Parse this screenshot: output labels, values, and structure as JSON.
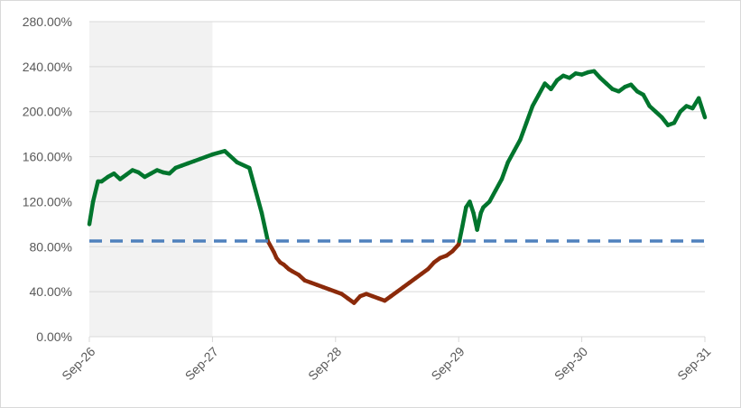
{
  "chart_data": {
    "type": "line",
    "title": "",
    "xlabel": "",
    "ylabel": "",
    "x_ticks": [
      "Sep-26",
      "Sep-27",
      "Sep-28",
      "Sep-29",
      "Sep-30",
      "Sep-31"
    ],
    "y_ticks": [
      "0.00%",
      "40.00%",
      "80.00%",
      "120.00%",
      "160.00%",
      "200.00%",
      "240.00%",
      "280.00%"
    ],
    "ylim": [
      0,
      280
    ],
    "xlim": [
      0,
      5
    ],
    "x_unit_note": "years from Sep-26",
    "grid": "horizontal",
    "shaded_region": {
      "from": 0,
      "to": 1,
      "color": "#f2f2f2"
    },
    "threshold": {
      "value": 85,
      "style": "dashed",
      "color": "#4f81bd"
    },
    "colors": {
      "above": "#00752d",
      "below": "#8b2a0a",
      "grid": "#d9d9d9",
      "axis": "#d9d9d9"
    },
    "series": [
      {
        "x": [
          0.0,
          0.03,
          0.07,
          0.1,
          0.15,
          0.2,
          0.25,
          0.3,
          0.35,
          0.4,
          0.45,
          0.5,
          0.55,
          0.6,
          0.65,
          0.7,
          0.75,
          0.8,
          0.85,
          0.9,
          0.95,
          1.0,
          1.1,
          1.2,
          1.3,
          1.35,
          1.4,
          1.45,
          1.5,
          1.52,
          1.55,
          1.58,
          1.6,
          1.62,
          1.65,
          1.7,
          1.75,
          1.8,
          1.85,
          1.9,
          1.95,
          2.0,
          2.05,
          2.1,
          2.15,
          2.2,
          2.25,
          2.3,
          2.35,
          2.4,
          2.45,
          2.5,
          2.55,
          2.6,
          2.65,
          2.7,
          2.75,
          2.8,
          2.85,
          2.9,
          2.95,
          3.0,
          3.03,
          3.06,
          3.09,
          3.12,
          3.15,
          3.18,
          3.2,
          3.25,
          3.3,
          3.35,
          3.4,
          3.45,
          3.5,
          3.55,
          3.6,
          3.65,
          3.7,
          3.75,
          3.8,
          3.85,
          3.9,
          3.95,
          4.0,
          4.05,
          4.1,
          4.15,
          4.2,
          4.25,
          4.3,
          4.35,
          4.4,
          4.45,
          4.5,
          4.55,
          4.6,
          4.65,
          4.7,
          4.75,
          4.8,
          4.85,
          4.9,
          4.95,
          5.0
        ],
        "values": [
          100,
          120,
          138,
          138,
          142,
          145,
          140,
          144,
          148,
          146,
          142,
          145,
          148,
          146,
          145,
          150,
          152,
          154,
          156,
          158,
          160,
          162,
          165,
          155,
          150,
          130,
          110,
          85,
          75,
          70,
          66,
          64,
          62,
          60,
          58,
          55,
          50,
          48,
          46,
          44,
          42,
          40,
          38,
          34,
          30,
          36,
          38,
          36,
          34,
          32,
          36,
          40,
          44,
          48,
          52,
          56,
          60,
          66,
          70,
          72,
          76,
          82,
          98,
          115,
          120,
          110,
          95,
          110,
          115,
          120,
          130,
          140,
          155,
          165,
          175,
          190,
          205,
          215,
          225,
          220,
          228,
          232,
          230,
          234,
          233,
          235,
          236,
          230,
          225,
          220,
          218,
          222,
          224,
          218,
          215,
          205,
          200,
          195,
          188,
          190,
          200,
          205,
          203,
          212,
          195
        ]
      }
    ]
  }
}
